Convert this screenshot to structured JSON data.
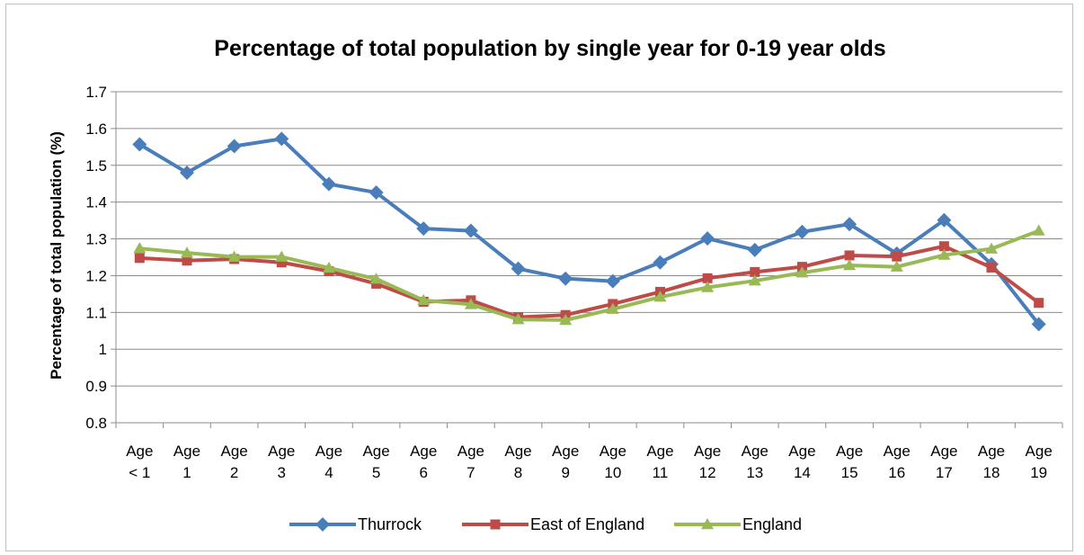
{
  "chart_data": {
    "type": "line",
    "title": "Percentage of total population by single year for 0-19 year olds",
    "xlabel": "",
    "ylabel": "Percentage of total population (%)",
    "ylim": [
      0.8,
      1.7
    ],
    "yticks": [
      "1.7",
      "1.6",
      "1.5",
      "1.4",
      "1.3",
      "1.2",
      "1.1",
      "1",
      "0.9",
      "0.8"
    ],
    "grid": true,
    "legend_position": "bottom",
    "categories": [
      [
        "Age",
        "< 1"
      ],
      [
        "Age",
        "1"
      ],
      [
        "Age",
        "2"
      ],
      [
        "Age",
        "3"
      ],
      [
        "Age",
        "4"
      ],
      [
        "Age",
        "5"
      ],
      [
        "Age",
        "6"
      ],
      [
        "Age",
        "7"
      ],
      [
        "Age",
        "8"
      ],
      [
        "Age",
        "9"
      ],
      [
        "Age",
        "10"
      ],
      [
        "Age",
        "11"
      ],
      [
        "Age",
        "12"
      ],
      [
        "Age",
        "13"
      ],
      [
        "Age",
        "14"
      ],
      [
        "Age",
        "15"
      ],
      [
        "Age",
        "16"
      ],
      [
        "Age",
        "17"
      ],
      [
        "Age",
        "18"
      ],
      [
        "Age",
        "19"
      ]
    ],
    "series": [
      {
        "name": "Thurrock",
        "color": "#4a7ebb",
        "marker": "diamond",
        "values": [
          1.557,
          1.48,
          1.552,
          1.572,
          1.449,
          1.426,
          1.328,
          1.322,
          1.219,
          1.192,
          1.185,
          1.236,
          1.301,
          1.27,
          1.319,
          1.34,
          1.26,
          1.351,
          1.231,
          1.068
        ]
      },
      {
        "name": "East of England",
        "color": "#be4b48",
        "marker": "square",
        "values": [
          1.248,
          1.241,
          1.245,
          1.236,
          1.212,
          1.178,
          1.129,
          1.133,
          1.087,
          1.093,
          1.123,
          1.156,
          1.193,
          1.21,
          1.224,
          1.255,
          1.252,
          1.28,
          1.222,
          1.126
        ]
      },
      {
        "name": "England",
        "color": "#98b954",
        "marker": "triangle",
        "values": [
          1.274,
          1.262,
          1.251,
          1.251,
          1.221,
          1.191,
          1.133,
          1.122,
          1.081,
          1.079,
          1.109,
          1.142,
          1.168,
          1.186,
          1.208,
          1.228,
          1.224,
          1.256,
          1.273,
          1.322
        ]
      }
    ]
  }
}
